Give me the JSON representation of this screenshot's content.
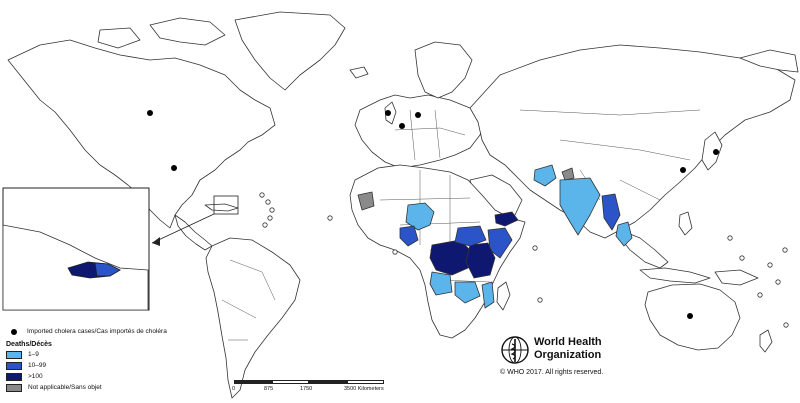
{
  "colors": {
    "background": "#ffffff",
    "land": "#ffffff",
    "outline": "#333333",
    "deaths_1_9": "#5bb5ea",
    "deaths_10_99": "#2a54c8",
    "deaths_100_plus": "#0f1870",
    "not_applicable": "#8a8a8a",
    "imported_dot": "#000000"
  },
  "legend": {
    "imported_label": "Imported cholera cases/Cas importés de choléra",
    "deaths_title": "Deaths/Décès",
    "classes": [
      {
        "label": "1–9",
        "color": "#5bb5ea"
      },
      {
        "label": "10–99",
        "color": "#2a54c8"
      },
      {
        "label": ">100",
        "color": "#0f1870"
      },
      {
        "label": "Not applicable/Sans objet",
        "color": "#8a8a8a"
      }
    ]
  },
  "scale": {
    "ticks": [
      "0",
      "875",
      "1750",
      "3500 Kilometers"
    ]
  },
  "publisher": {
    "name_line1": "World Health",
    "name_line2": "Organization",
    "copyright": "© WHO 2017. All rights reserved."
  },
  "icons": {
    "who_logo": "who-emblem-icon"
  }
}
